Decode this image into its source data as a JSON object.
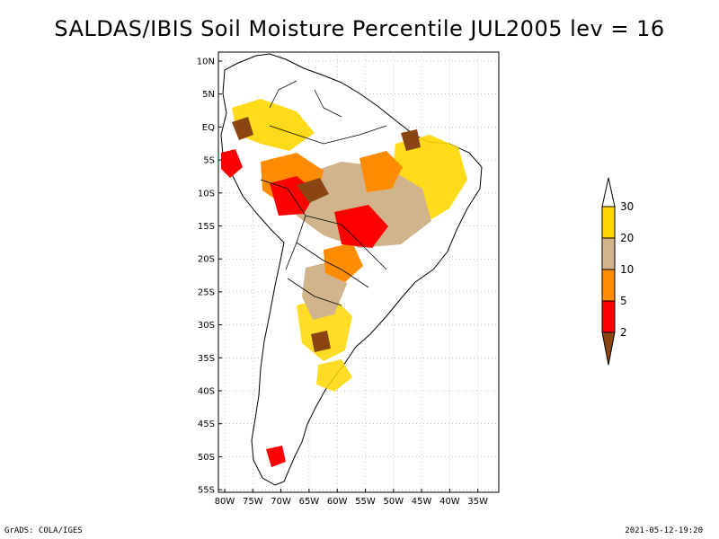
{
  "title": "SALDAS/IBIS Soil Moisture Percentile JUL2005 lev = 16",
  "lat_labels": [
    "10N",
    "5N",
    "EQ",
    "5S",
    "10S",
    "15S",
    "20S",
    "25S",
    "30S",
    "35S",
    "40S",
    "45S",
    "50S",
    "55S"
  ],
  "lon_labels": [
    "80W",
    "75W",
    "70W",
    "65W",
    "60W",
    "55W",
    "50W",
    "45W",
    "40W",
    "35W"
  ],
  "colorbar": {
    "labels": [
      "30",
      "20",
      "10",
      "5",
      "2"
    ],
    "colors": [
      "#ffffff",
      "#ffd700",
      "#d2b48c",
      "#ff8c00",
      "#ff0000",
      "#8b4513"
    ]
  },
  "footer_left": "GrADS: COLA/IGES",
  "footer_right": "2021-05-12-19:20"
}
